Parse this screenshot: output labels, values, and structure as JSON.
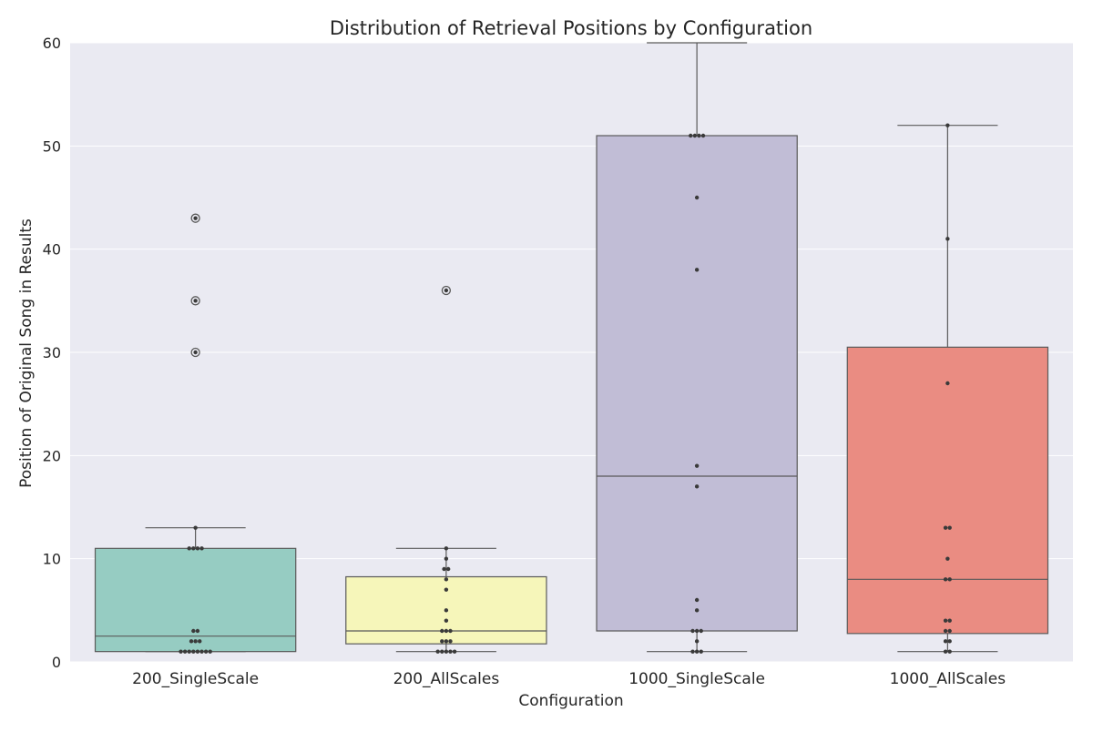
{
  "chart_data": {
    "type": "box",
    "title": "Distribution of Retrieval Positions by Configuration",
    "xlabel": "Configuration",
    "ylabel": "Position of Original Song in Results",
    "ylim": [
      0,
      60
    ],
    "yticks": [
      0,
      10,
      20,
      30,
      40,
      50,
      60
    ],
    "grid": true,
    "colors": {
      "plot_bg": "#EAEAF2",
      "grid": "#FFFFFF",
      "box_edge": "#5a5a5a",
      "point": "#3a3a3a"
    },
    "categories": [
      "200_SingleScale",
      "200_AllScales",
      "1000_SingleScale",
      "1000_AllScales"
    ],
    "boxes": [
      {
        "category": "200_SingleScale",
        "color": "#96CCC2",
        "q1": 1,
        "median": 2.5,
        "q3": 11,
        "whisker_low": 1,
        "whisker_high": 13,
        "outliers": [
          30,
          35,
          43
        ],
        "points": [
          1,
          1,
          1,
          1,
          1,
          1,
          1,
          1,
          2,
          2,
          2,
          3,
          3,
          11,
          11,
          11,
          11,
          13
        ]
      },
      {
        "category": "200_AllScales",
        "color": "#F6F6BA",
        "q1": 1.75,
        "median": 3,
        "q3": 8.25,
        "whisker_low": 1,
        "whisker_high": 11,
        "outliers": [
          36
        ],
        "points": [
          1,
          1,
          1,
          1,
          1,
          2,
          2,
          2,
          3,
          3,
          3,
          4,
          5,
          7,
          8,
          9,
          9,
          10,
          11
        ]
      },
      {
        "category": "1000_SingleScale",
        "color": "#C1BDD6",
        "q1": 3,
        "median": 18,
        "q3": 51,
        "whisker_low": 1,
        "whisker_high": 60,
        "outliers": [],
        "points": [
          1,
          1,
          1,
          2,
          3,
          3,
          3,
          5,
          6,
          17,
          19,
          38,
          45,
          51,
          51,
          51,
          51
        ]
      },
      {
        "category": "1000_AllScales",
        "color": "#EA8C82",
        "q1": 2.75,
        "median": 8,
        "q3": 30.5,
        "whisker_low": 1,
        "whisker_high": 52,
        "outliers": [],
        "points": [
          1,
          1,
          2,
          2,
          3,
          3,
          4,
          4,
          8,
          8,
          10,
          13,
          13,
          27,
          41,
          52
        ]
      }
    ]
  }
}
